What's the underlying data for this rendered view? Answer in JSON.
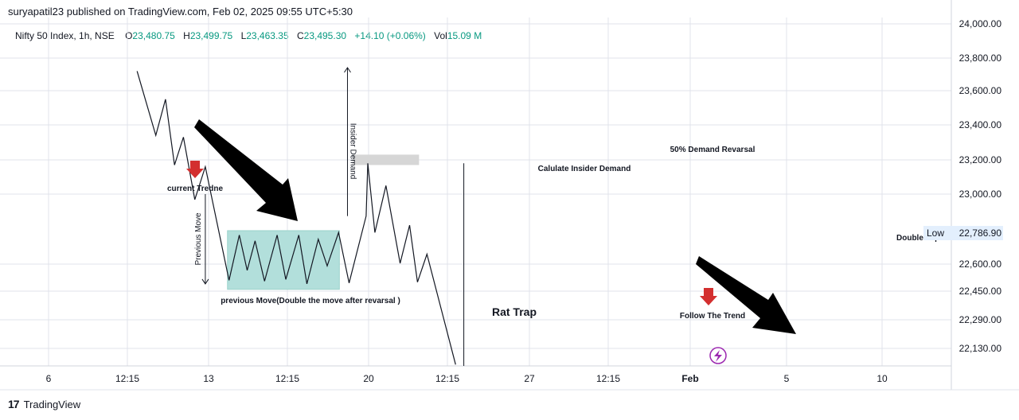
{
  "header": {
    "published": "suryapatil23 published on TradingView.com, Feb 02, 2025 09:55 UTC+5:30"
  },
  "legend": {
    "symbol": "Nifty 50 Index, 1h, NSE",
    "open_label": "O",
    "open": "23,480.75",
    "high_label": "H",
    "high": "23,499.75",
    "low_label": "L",
    "low": "23,463.35",
    "close_label": "C",
    "close": "23,495.30",
    "change": "+14.10 (+0.06%)",
    "vol_label": "Vol",
    "vol": "15.09 M"
  },
  "footer": {
    "logo_text": "TradingView"
  },
  "colors": {
    "up": "#089981",
    "down_arrow": "#d32f2f",
    "box": "#b2dfdb",
    "box_border": "#9ad2cb",
    "zone": "#d6d6d6",
    "grid": "#e0e3eb",
    "price_tag_bg": "#e3effd",
    "signal": "#9c27b0"
  },
  "chart_data": {
    "type": "line",
    "title": "",
    "symbol": "Nifty 50 Index, 1h, NSE",
    "xlabel": "",
    "ylabel": "",
    "ylim": [
      22050,
      24000
    ],
    "grid": true,
    "y_ticks": [
      "24,000.00",
      "23,800.00",
      "23,600.00",
      "23,400.00",
      "23,200.00",
      "23,000.00",
      "22,600.00",
      "22,450.00",
      "22,290.00",
      "22,130.00"
    ],
    "y_tick_values": [
      24000,
      23800,
      23600,
      23400,
      23200,
      23000,
      22600,
      22450,
      22290,
      22130
    ],
    "x_ticks": [
      {
        "label": "6",
        "bold": false
      },
      {
        "label": "12:15",
        "bold": false
      },
      {
        "label": "13",
        "bold": false
      },
      {
        "label": "12:15",
        "bold": false
      },
      {
        "label": "20",
        "bold": false
      },
      {
        "label": "12:15",
        "bold": false
      },
      {
        "label": "27",
        "bold": false
      },
      {
        "label": "12:15",
        "bold": false
      },
      {
        "label": "Feb",
        "bold": true
      },
      {
        "label": "5",
        "bold": false
      },
      {
        "label": "10",
        "bold": false
      }
    ],
    "x_tick_index": [
      0,
      1,
      2,
      3,
      4,
      5,
      6,
      7,
      8,
      9,
      10
    ],
    "price_label": {
      "tag": "Low",
      "value": "22,786.90",
      "price": 22786.9
    },
    "series": [
      {
        "points": [
          [
            1.12,
            23720
          ],
          [
            1.35,
            23340
          ],
          [
            1.47,
            23550
          ],
          [
            1.58,
            23170
          ],
          [
            1.69,
            23330
          ],
          [
            1.83,
            22970
          ],
          [
            1.96,
            23160
          ],
          [
            2.26,
            22510
          ],
          [
            2.39,
            22775
          ],
          [
            2.49,
            22565
          ],
          [
            2.59,
            22740
          ],
          [
            2.71,
            22505
          ],
          [
            2.87,
            22775
          ],
          [
            2.98,
            22515
          ],
          [
            3.14,
            22775
          ],
          [
            3.24,
            22490
          ],
          [
            3.38,
            22750
          ],
          [
            3.49,
            22590
          ],
          [
            3.63,
            22790
          ],
          [
            3.76,
            22495
          ],
          [
            3.97,
            22880
          ],
          [
            3.99,
            23180
          ],
          [
            4.08,
            22790
          ],
          [
            4.22,
            23050
          ],
          [
            4.4,
            22605
          ],
          [
            4.52,
            22830
          ],
          [
            4.62,
            22500
          ],
          [
            4.74,
            22660
          ],
          [
            5.1,
            22040
          ]
        ]
      }
    ],
    "annotations": {
      "current_trend": "current Tredne",
      "previous_move_vertical": "Previous Move",
      "previous_move_note": "previous Move(Double the move after revarsal )",
      "rat_trap": "Rat Trap",
      "insider_demand_vertical": "Insider Demand",
      "calculate_insider_demand": "Calulate Insider Demand",
      "demand_reversal": "50% Demand Revarsal",
      "follow_trend": "Follow The Trend",
      "double_top": "Double Top"
    },
    "rat_trap_box": {
      "x_start": 2.24,
      "x_end": 3.64,
      "y_low": 22460,
      "y_high": 22800
    },
    "demand_zone": {
      "x_start": 3.8,
      "x_end": 4.64,
      "y_low": 23170,
      "y_high": 23230
    },
    "previous_move_arrow": {
      "x": 1.96,
      "y_from": 23000,
      "y_to": 22490
    },
    "insider_demand_arrow": {
      "x": 3.74,
      "y_from": 22880,
      "y_to": 23800
    },
    "vline_x": 5.2
  }
}
